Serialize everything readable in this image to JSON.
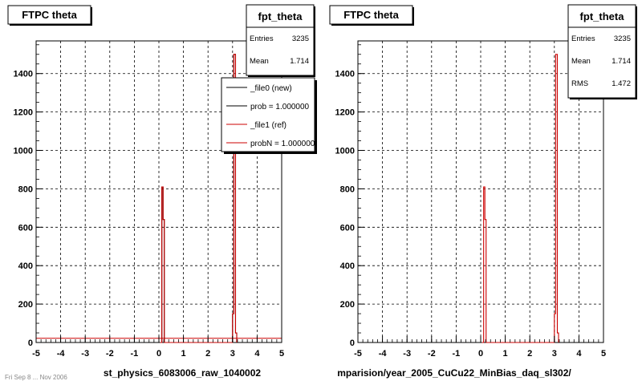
{
  "footer_text": "Fri Sep 8 ... Nov 2006",
  "chart_data": [
    {
      "type": "bar",
      "title": "FTPC theta",
      "xlabel": "st_physics_6083006_raw_1040002",
      "ylabel": "",
      "xlim": [
        -5,
        5
      ],
      "ylim": [
        0,
        1570
      ],
      "grid": true,
      "x_ticks": [
        "-5",
        "-4",
        "-3",
        "-2",
        "-1",
        "0",
        "1",
        "2",
        "3",
        "4",
        "5"
      ],
      "y_ticks": [
        "0",
        "200",
        "400",
        "600",
        "800",
        "1000",
        "1200",
        "1400"
      ],
      "series": [
        {
          "name": "_file0 (new)",
          "color": "#000000",
          "bins": [
            [
              0.05,
              0
            ],
            [
              0.12,
              810
            ],
            [
              0.17,
              640
            ],
            [
              0.22,
              0
            ],
            [
              2.97,
              0
            ],
            [
              3.0,
              150
            ],
            [
              3.05,
              1500
            ],
            [
              3.12,
              50
            ],
            [
              3.17,
              0
            ]
          ]
        },
        {
          "name": "_file1 (ref)",
          "color": "#cc0000",
          "bins": [
            [
              0.05,
              0
            ],
            [
              0.12,
              810
            ],
            [
              0.17,
              640
            ],
            [
              0.22,
              0
            ],
            [
              2.97,
              0
            ],
            [
              3.0,
              150
            ],
            [
              3.05,
              1500
            ],
            [
              3.12,
              50
            ],
            [
              3.17,
              0
            ]
          ]
        }
      ],
      "baseline_value": 22,
      "stats_box": {
        "title": "fpt_theta",
        "rows": [
          {
            "label": "Entries",
            "value": "3235"
          },
          {
            "label": "Mean",
            "value": "1.714"
          }
        ]
      },
      "legend": {
        "placement": "top-right",
        "entries": [
          {
            "label": "_file0 (new)",
            "color": "#000000"
          },
          {
            "label": "prob = 1.000000",
            "color": "#000000"
          },
          {
            "label": "_file1 (ref)",
            "color": "#cc0000"
          },
          {
            "label": "probN = 1.000000",
            "color": "#cc0000"
          }
        ]
      }
    },
    {
      "type": "bar",
      "title": "FTPC theta",
      "xlabel": "mparision/year_2005_CuCu22_MinBias_daq_sl302/",
      "ylabel": "",
      "xlim": [
        -5,
        5
      ],
      "ylim": [
        0,
        1570
      ],
      "grid": true,
      "x_ticks": [
        "-5",
        "-4",
        "-3",
        "-2",
        "-1",
        "0",
        "1",
        "2",
        "3",
        "4",
        "5"
      ],
      "y_ticks": [
        "0",
        "200",
        "400",
        "600",
        "800",
        "1000",
        "1200",
        "1400"
      ],
      "series": [
        {
          "name": "",
          "color": "#cc0000",
          "bins": [
            [
              0.05,
              0
            ],
            [
              0.12,
              810
            ],
            [
              0.17,
              640
            ],
            [
              0.22,
              0
            ],
            [
              2.97,
              0
            ],
            [
              3.0,
              150
            ],
            [
              3.05,
              1500
            ],
            [
              3.12,
              50
            ],
            [
              3.17,
              0
            ]
          ]
        }
      ],
      "baseline_value": 0,
      "stats_box": {
        "title": "fpt_theta",
        "rows": [
          {
            "label": "Entries",
            "value": "3235"
          },
          {
            "label": "Mean",
            "value": "1.714"
          },
          {
            "label": "RMS",
            "value": "1.472"
          }
        ]
      },
      "legend": null
    }
  ]
}
